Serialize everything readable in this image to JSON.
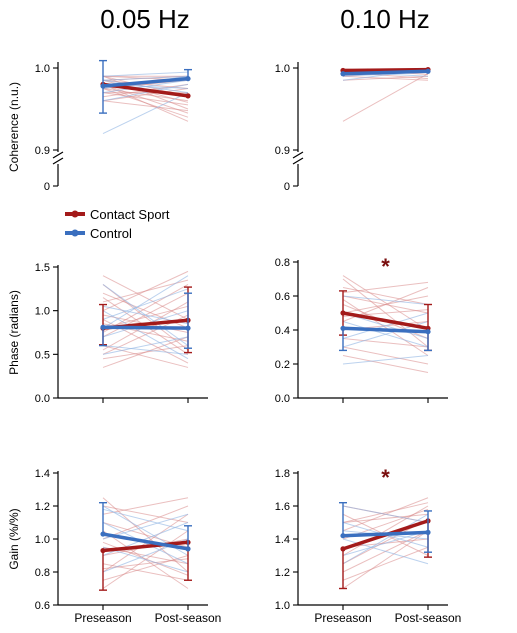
{
  "column_titles": [
    "0.05 Hz",
    "0.10 Hz"
  ],
  "x_labels": [
    "Preseason",
    "Post-season"
  ],
  "legend": [
    {
      "label": "Contact Sport",
      "color": "#a31a1a"
    },
    {
      "label": "Control",
      "color": "#3a6fbf"
    }
  ],
  "colors": {
    "contact": "#a31a1a",
    "control": "#3a6fbf",
    "contact_light": "#d98a8a",
    "control_light": "#8fb4e3"
  },
  "chart_data": [
    {
      "type": "line",
      "id": "coherence_005",
      "ylabel": "Coherence (n.u.)",
      "ylim": [
        0.9,
        1.0
      ],
      "yticks": [
        "0.9",
        "1.0"
      ],
      "broken_axis_zero": "0",
      "x": [
        "Preseason",
        "Post-season"
      ],
      "series": [
        {
          "name": "Contact Sport",
          "mean": [
            0.98,
            0.966
          ],
          "err_low": [
            null,
            null
          ],
          "err_high": [
            null,
            null
          ]
        },
        {
          "name": "Control",
          "mean": [
            0.978,
            0.987
          ],
          "err_low": [
            0.945,
            null
          ],
          "err_high": [
            1.009,
            0.998
          ]
        }
      ],
      "individual_contact": [
        [
          0.99,
          0.95
        ],
        [
          0.985,
          0.975
        ],
        [
          0.975,
          0.96
        ],
        [
          0.98,
          0.945
        ],
        [
          0.99,
          0.985
        ],
        [
          0.96,
          0.975
        ],
        [
          0.97,
          0.955
        ],
        [
          0.985,
          0.99
        ],
        [
          0.975,
          0.94
        ],
        [
          0.965,
          0.98
        ],
        [
          0.99,
          0.965
        ],
        [
          0.98,
          0.935
        ],
        [
          0.97,
          0.97
        ],
        [
          0.985,
          0.958
        ],
        [
          0.96,
          0.948
        ],
        [
          0.99,
          0.99
        ],
        [
          0.975,
          0.985
        ]
      ],
      "individual_control": [
        [
          0.92,
          0.97
        ],
        [
          0.985,
          0.99
        ],
        [
          0.98,
          0.975
        ],
        [
          0.97,
          0.985
        ],
        [
          0.99,
          0.995
        ],
        [
          0.975,
          0.99
        ],
        [
          0.96,
          0.98
        ],
        [
          0.985,
          0.97
        ]
      ]
    },
    {
      "type": "line",
      "id": "coherence_010",
      "ylabel": "",
      "ylim": [
        0.9,
        1.0
      ],
      "yticks": [
        "0.9",
        "1.0"
      ],
      "broken_axis_zero": "0",
      "x": [
        "Preseason",
        "Post-season"
      ],
      "series": [
        {
          "name": "Contact Sport",
          "mean": [
            0.997,
            0.998
          ],
          "err_low": [
            null,
            null
          ],
          "err_high": [
            null,
            null
          ]
        },
        {
          "name": "Control",
          "mean": [
            0.993,
            0.996
          ],
          "err_low": [
            null,
            null
          ],
          "err_high": [
            null,
            null
          ]
        }
      ],
      "individual_contact": [
        [
          0.935,
          0.993
        ],
        [
          0.99,
          0.985
        ],
        [
          0.998,
          0.999
        ],
        [
          0.985,
          0.99
        ],
        [
          0.995,
          0.987
        ],
        [
          0.99,
          0.998
        ],
        [
          0.999,
          0.992
        ]
      ],
      "individual_control": [
        [
          0.99,
          0.995
        ],
        [
          0.995,
          0.99
        ],
        [
          0.985,
          0.998
        ]
      ]
    },
    {
      "type": "line",
      "id": "phase_005",
      "ylabel": "Phase (radians)",
      "ylim": [
        0.0,
        1.5
      ],
      "yticks": [
        "0.0",
        "0.5",
        "1.0",
        "1.5"
      ],
      "x": [
        "Preseason",
        "Post-season"
      ],
      "series": [
        {
          "name": "Contact Sport",
          "mean": [
            0.8,
            0.89
          ],
          "err_low": [
            0.61,
            0.52
          ],
          "err_high": [
            1.07,
            1.27
          ]
        },
        {
          "name": "Control",
          "mean": [
            0.81,
            0.8
          ],
          "err_low": [
            0.6,
            0.57
          ],
          "err_high": [
            null,
            1.2
          ]
        }
      ],
      "individual_contact": [
        [
          1.3,
          0.55
        ],
        [
          1.1,
          1.35
        ],
        [
          0.5,
          0.95
        ],
        [
          0.9,
          0.4
        ],
        [
          0.7,
          1.2
        ],
        [
          1.2,
          0.8
        ],
        [
          0.35,
          0.7
        ],
        [
          1.0,
          1.45
        ],
        [
          0.6,
          0.35
        ],
        [
          0.8,
          1.05
        ],
        [
          1.4,
          0.9
        ],
        [
          0.45,
          0.6
        ],
        [
          0.95,
          0.75
        ],
        [
          0.75,
          1.3
        ],
        [
          1.15,
          0.5
        ],
        [
          0.55,
          1.1
        ],
        [
          0.85,
          0.65
        ]
      ],
      "individual_control": [
        [
          0.9,
          1.25
        ],
        [
          0.6,
          0.5
        ],
        [
          1.05,
          0.85
        ],
        [
          0.7,
          1.0
        ],
        [
          1.3,
          0.6
        ],
        [
          0.5,
          0.7
        ],
        [
          0.8,
          1.4
        ],
        [
          1.0,
          0.45
        ]
      ]
    },
    {
      "type": "line",
      "id": "phase_010",
      "ylabel": "",
      "significance": "*",
      "ylim": [
        0.0,
        0.8
      ],
      "yticks": [
        "0.0",
        "0.2",
        "0.4",
        "0.6",
        "0.8"
      ],
      "x": [
        "Preseason",
        "Post-season"
      ],
      "series": [
        {
          "name": "Contact Sport",
          "mean": [
            0.5,
            0.41
          ],
          "err_low": [
            0.37,
            0.28
          ],
          "err_high": [
            0.63,
            0.55
          ]
        },
        {
          "name": "Control",
          "mean": [
            0.41,
            0.39
          ],
          "err_low": [
            0.28,
            0.28
          ],
          "err_high": [
            null,
            null
          ]
        }
      ],
      "individual_contact": [
        [
          0.7,
          0.3
        ],
        [
          0.6,
          0.5
        ],
        [
          0.45,
          0.65
        ],
        [
          0.3,
          0.2
        ],
        [
          0.55,
          0.35
        ],
        [
          0.65,
          0.55
        ],
        [
          0.4,
          0.45
        ],
        [
          0.25,
          0.15
        ],
        [
          0.5,
          0.6
        ],
        [
          0.35,
          0.3
        ],
        [
          0.72,
          0.4
        ],
        [
          0.58,
          0.25
        ],
        [
          0.48,
          0.52
        ],
        [
          0.62,
          0.68
        ]
      ],
      "individual_control": [
        [
          0.5,
          0.35
        ],
        [
          0.3,
          0.45
        ],
        [
          0.2,
          0.25
        ],
        [
          0.6,
          0.55
        ],
        [
          0.45,
          0.3
        ],
        [
          0.35,
          0.5
        ]
      ]
    },
    {
      "type": "line",
      "id": "gain_005",
      "ylabel": "Gain (%/%)",
      "ylim": [
        0.6,
        1.4
      ],
      "yticks": [
        "0.6",
        "0.8",
        "1.0",
        "1.2",
        "1.4"
      ],
      "x": [
        "Preseason",
        "Post-season"
      ],
      "series": [
        {
          "name": "Contact Sport",
          "mean": [
            0.93,
            0.98
          ],
          "err_low": [
            0.69,
            0.75
          ],
          "err_high": [
            null,
            null
          ]
        },
        {
          "name": "Control",
          "mean": [
            1.03,
            0.94
          ],
          "err_low": [
            null,
            null
          ],
          "err_high": [
            1.22,
            1.08
          ]
        }
      ],
      "individual_contact": [
        [
          1.25,
          0.8
        ],
        [
          0.7,
          1.05
        ],
        [
          1.0,
          1.2
        ],
        [
          0.85,
          0.75
        ],
        [
          1.1,
          0.95
        ],
        [
          0.8,
          1.15
        ],
        [
          0.95,
          0.85
        ],
        [
          1.2,
          1.1
        ],
        [
          0.75,
          0.9
        ],
        [
          1.05,
          0.7
        ],
        [
          0.9,
          1.0
        ],
        [
          1.15,
          1.25
        ],
        [
          0.82,
          0.88
        ],
        [
          0.98,
          0.78
        ]
      ],
      "individual_control": [
        [
          1.2,
          0.9
        ],
        [
          0.9,
          1.1
        ],
        [
          1.1,
          0.85
        ],
        [
          0.8,
          1.0
        ],
        [
          1.0,
          1.15
        ],
        [
          0.95,
          0.8
        ],
        [
          1.18,
          1.05
        ]
      ]
    },
    {
      "type": "line",
      "id": "gain_010",
      "ylabel": "",
      "significance": "*",
      "ylim": [
        1.0,
        1.8
      ],
      "yticks": [
        "1.0",
        "1.2",
        "1.4",
        "1.6",
        "1.8"
      ],
      "x": [
        "Preseason",
        "Post-season"
      ],
      "series": [
        {
          "name": "Contact Sport",
          "mean": [
            1.34,
            1.51
          ],
          "err_low": [
            1.1,
            1.29
          ],
          "err_high": [
            null,
            null
          ]
        },
        {
          "name": "Control",
          "mean": [
            1.42,
            1.44
          ],
          "err_low": [
            null,
            1.32
          ],
          "err_high": [
            1.62,
            1.57
          ]
        }
      ],
      "individual_contact": [
        [
          1.2,
          1.45
        ],
        [
          1.5,
          1.55
        ],
        [
          1.3,
          1.6
        ],
        [
          1.6,
          1.5
        ],
        [
          1.15,
          1.35
        ],
        [
          1.45,
          1.65
        ],
        [
          1.35,
          1.4
        ],
        [
          1.55,
          1.3
        ],
        [
          1.25,
          1.52
        ],
        [
          1.4,
          1.58
        ],
        [
          1.1,
          1.45
        ],
        [
          1.5,
          1.62
        ]
      ],
      "individual_control": [
        [
          1.4,
          1.25
        ],
        [
          1.6,
          1.5
        ],
        [
          1.3,
          1.45
        ],
        [
          1.5,
          1.35
        ],
        [
          1.25,
          1.55
        ],
        [
          1.45,
          1.4
        ]
      ]
    }
  ]
}
